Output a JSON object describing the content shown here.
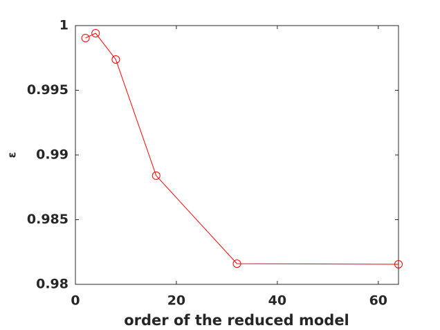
{
  "chart_data": {
    "type": "line",
    "x_label": "order of the reduced model",
    "y_label": "ε",
    "x": [
      2,
      4,
      8,
      16,
      32,
      64
    ],
    "series": [
      {
        "name": "ε",
        "color": "#ff0000",
        "marker": "circle",
        "values": [
          0.99904,
          0.99941,
          0.99738,
          0.9884,
          0.9816,
          0.98155
        ]
      }
    ],
    "xlim": [
      0,
      64
    ],
    "xticks": [
      0,
      20,
      40,
      60
    ],
    "ylim": [
      0.98,
      1
    ],
    "yticks": [
      0.98,
      0.985,
      0.99,
      0.995,
      1
    ]
  }
}
